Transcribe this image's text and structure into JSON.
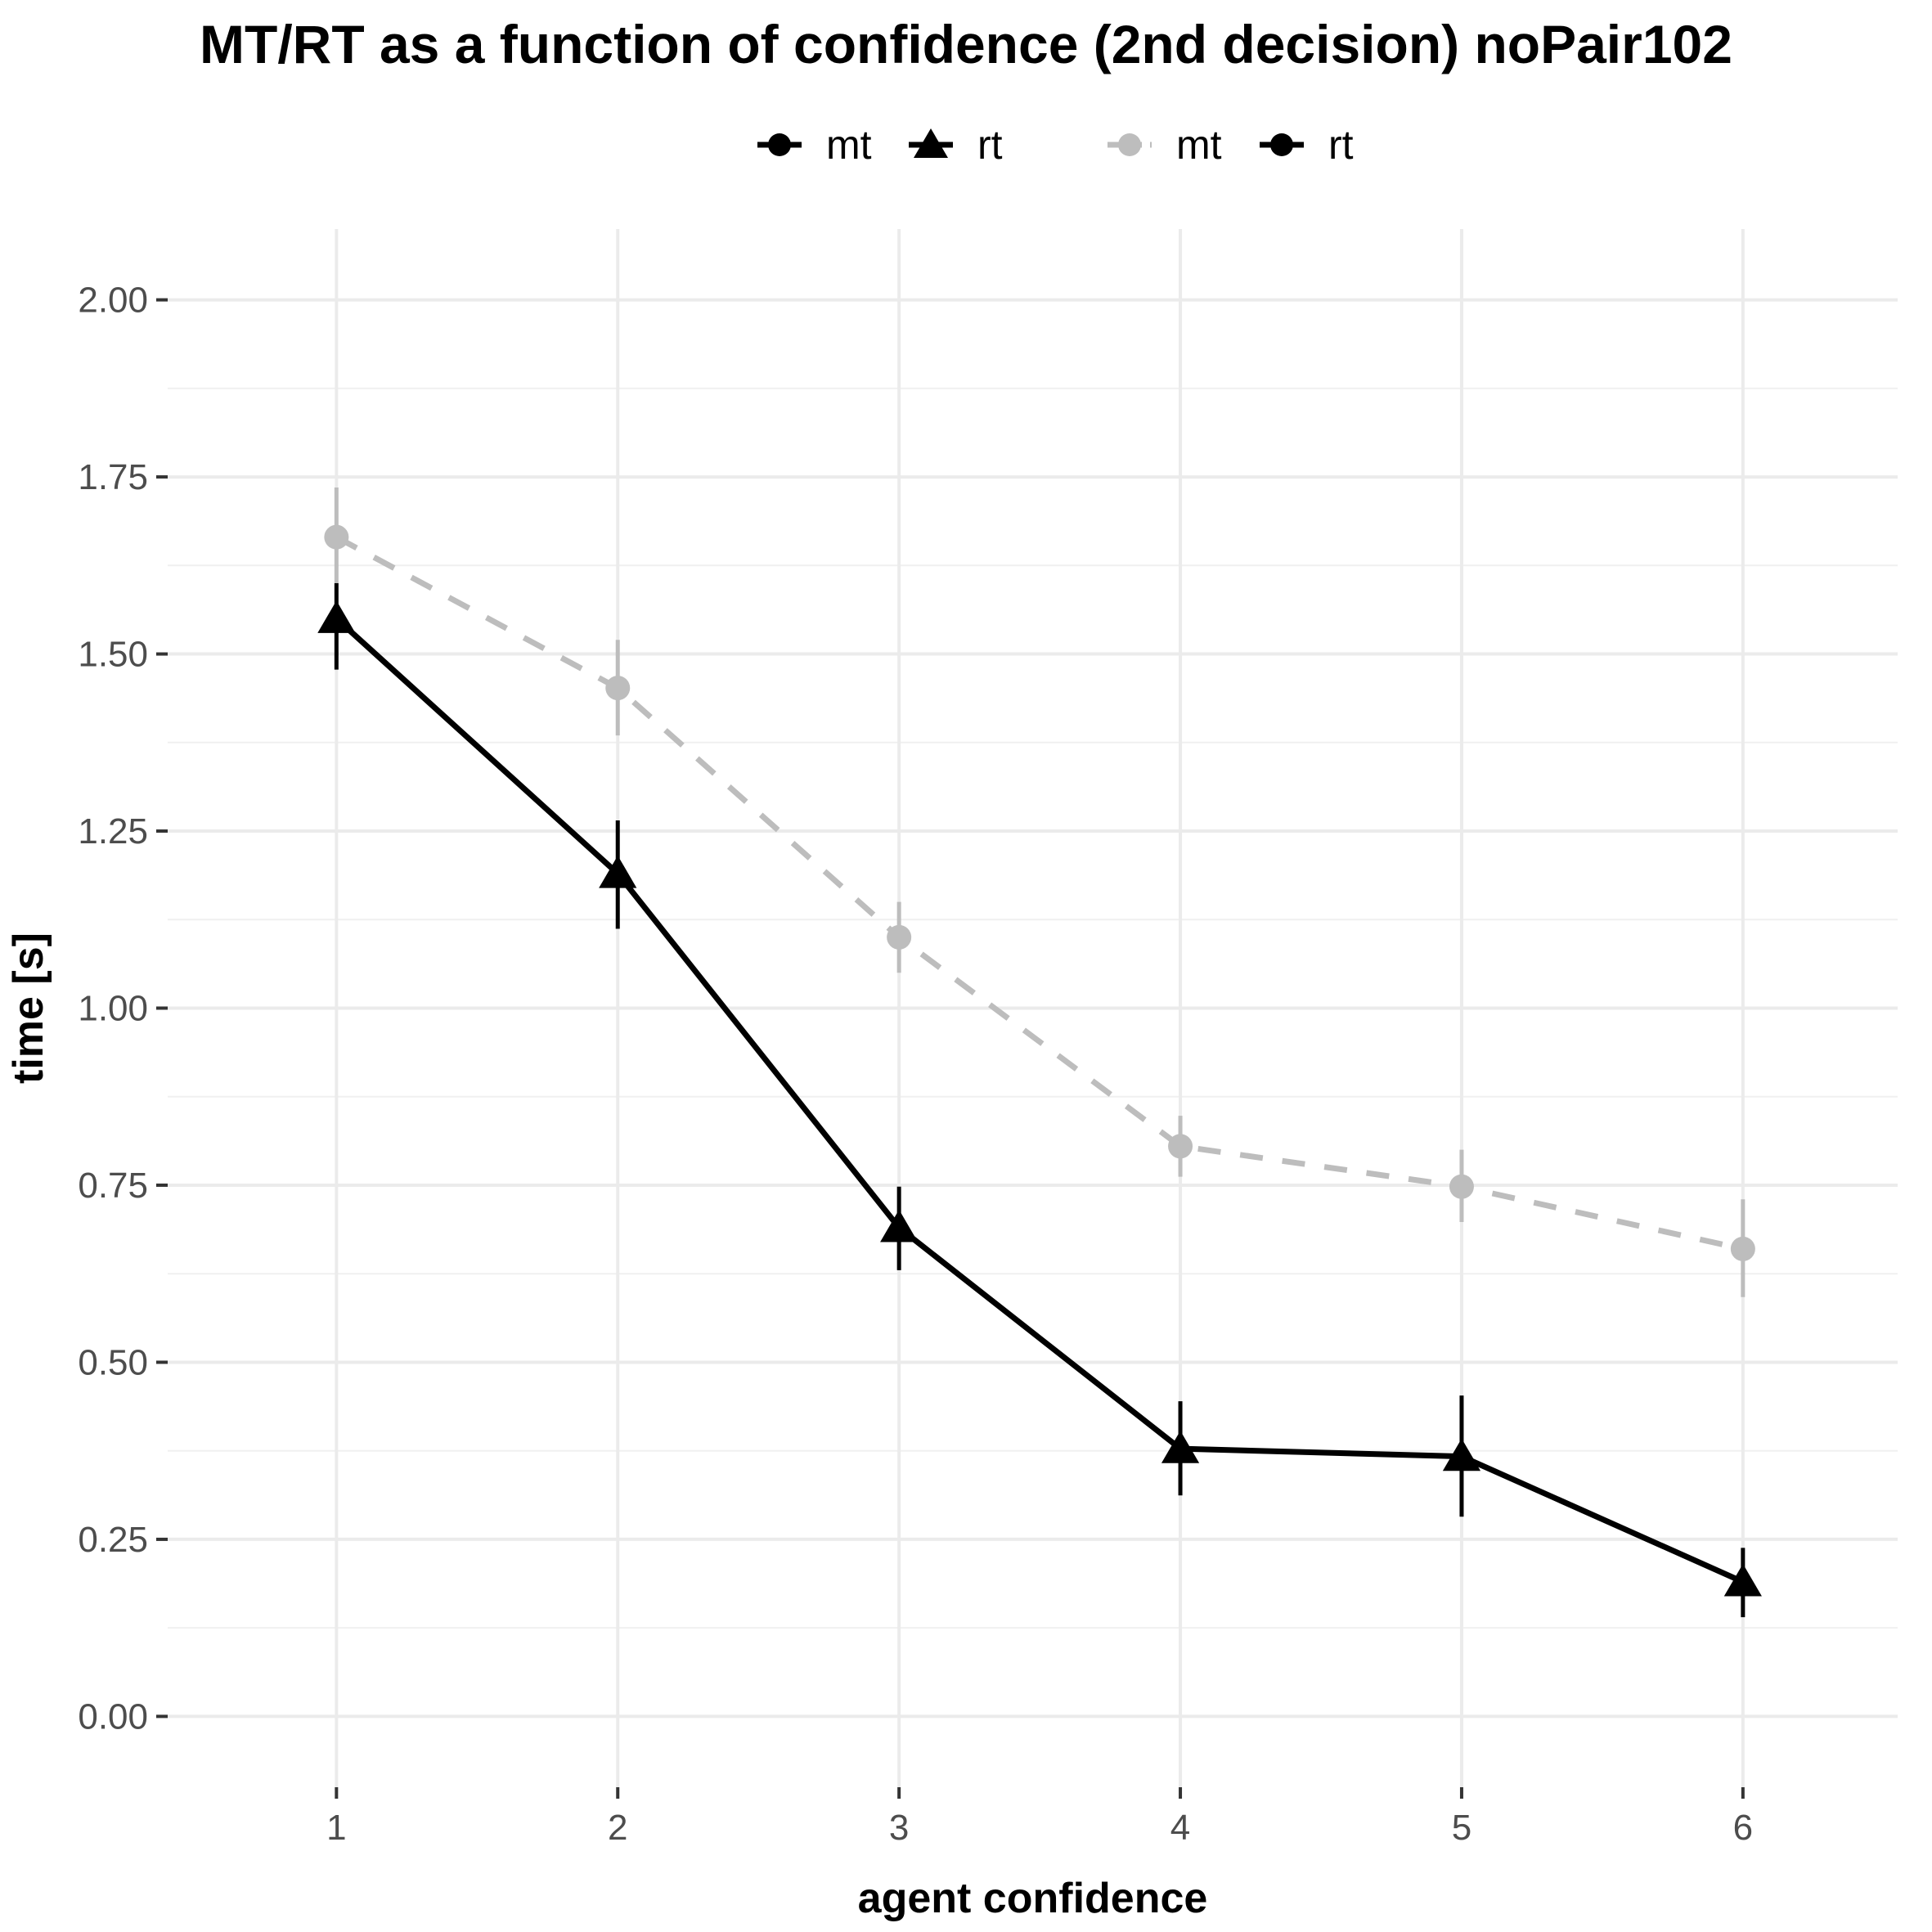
{
  "chart_data": {
    "type": "line",
    "title": "MT/RT as a function of confidence (2nd decision) noPair102",
    "xlabel": "agent confidence",
    "ylabel": "time [s]",
    "x": [
      1,
      2,
      3,
      4,
      5,
      6
    ],
    "x_tick_labels": [
      "1",
      "2",
      "3",
      "4",
      "5",
      "6"
    ],
    "xlim": [
      0.4,
      6.55
    ],
    "ylim": [
      -0.1,
      2.1
    ],
    "y_ticks": [
      0,
      0.25,
      0.5,
      0.75,
      1.0,
      1.25,
      1.5,
      1.75,
      2.0
    ],
    "y_tick_labels": [
      "0.00",
      "0.25",
      "0.50",
      "0.75",
      "1.00",
      "1.25",
      "1.50",
      "1.75",
      "2.00"
    ],
    "grid": true,
    "legend_position": "top",
    "legend": [
      {
        "label": "mt",
        "marker": "circle",
        "color": "#000000",
        "dash": false
      },
      {
        "label": "rt",
        "marker": "triangle",
        "color": "#000000",
        "dash": false
      },
      {
        "label": "mt",
        "marker": "circle",
        "color": "#bdbdbd",
        "dash": true
      },
      {
        "label": "rt",
        "marker": "circle",
        "color": "#000000",
        "dash": false
      }
    ],
    "series": [
      {
        "name": "mt",
        "color": "#bdbdbd",
        "dash": true,
        "marker": "circle",
        "values": [
          1.665,
          1.452,
          1.1,
          0.805,
          0.748,
          0.66
        ],
        "err_low": [
          1.6,
          1.385,
          1.05,
          0.762,
          0.698,
          0.592
        ],
        "err_high": [
          1.735,
          1.52,
          1.15,
          0.848,
          0.8,
          0.73
        ]
      },
      {
        "name": "rt",
        "color": "#000000",
        "dash": false,
        "marker": "triangle",
        "values": [
          1.55,
          1.19,
          0.69,
          0.378,
          0.367,
          0.19
        ],
        "err_low": [
          1.478,
          1.112,
          0.63,
          0.312,
          0.282,
          0.14
        ],
        "err_high": [
          1.6,
          1.265,
          0.748,
          0.445,
          0.453,
          0.238
        ]
      }
    ]
  }
}
